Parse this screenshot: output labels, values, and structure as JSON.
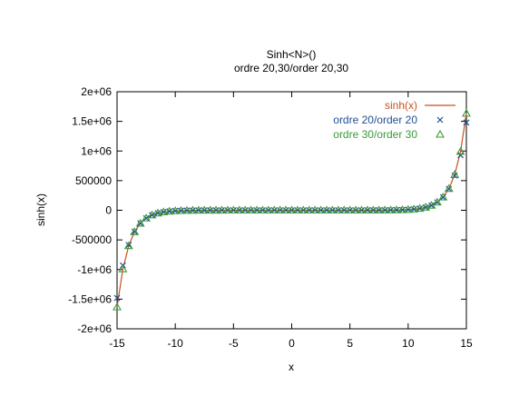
{
  "chart_data": {
    "type": "line",
    "title": "Sinh<N>()",
    "subtitle": "ordre 20,30/order 20,30",
    "xlabel": "x",
    "ylabel": "sinh(x)",
    "xlim": [
      -15,
      15
    ],
    "ylim": [
      -2000000,
      2000000
    ],
    "x_ticks": [
      -15,
      -10,
      -5,
      0,
      5,
      10,
      15
    ],
    "x_tick_labels": [
      "-15",
      "-10",
      "-5",
      "0",
      "5",
      "10",
      "15"
    ],
    "y_ticks": [
      -2000000,
      -1500000,
      -1000000,
      -500000,
      0,
      500000,
      1000000,
      1500000,
      2000000
    ],
    "y_tick_labels": [
      "-2e+06",
      "-1.5e+06",
      "-1e+06",
      "-500000",
      "0",
      "500000",
      "1e+06",
      "1.5e+06",
      "2e+06"
    ],
    "grid": false,
    "legend_position": "top-right",
    "x": [
      -15,
      -14.5,
      -14,
      -13.5,
      -13,
      -12.5,
      -12,
      -11.5,
      -11,
      -10.5,
      -10,
      -9.5,
      -9,
      -8.5,
      -8,
      -7.5,
      -7,
      -6.5,
      -6,
      -5.5,
      -5,
      -4.5,
      -4,
      -3.5,
      -3,
      -2.5,
      -2,
      -1.5,
      -1,
      -0.5,
      0,
      0.5,
      1,
      1.5,
      2,
      2.5,
      3,
      3.5,
      4,
      4.5,
      5,
      5.5,
      6,
      6.5,
      7,
      7.5,
      8,
      8.5,
      9,
      9.5,
      10,
      10.5,
      11,
      11.5,
      12,
      12.5,
      13,
      13.5,
      14,
      14.5,
      15
    ],
    "series": [
      {
        "name": "sinh(x)",
        "style": "line",
        "color": "#c8501e",
        "values": [
          -1634508.7,
          -991360.0,
          -601302.1,
          -364708.2,
          -221206.7,
          -134168.2,
          -81377.4,
          -49358.8,
          -29937.1,
          -18157.8,
          -11013.2,
          -6679.9,
          -4051.5,
          -2457.4,
          -1490.5,
          -904.0,
          -548.3,
          -332.6,
          -201.7,
          -122.3,
          -74.2,
          -45.0,
          -27.3,
          -16.5,
          -10.0,
          -6.1,
          -3.6,
          -2.1,
          -1.2,
          -0.5,
          0,
          0.5,
          1.2,
          2.1,
          3.6,
          6.1,
          10.0,
          16.5,
          27.3,
          45.0,
          74.2,
          122.3,
          201.7,
          332.6,
          548.3,
          904.0,
          1490.5,
          2457.4,
          4051.5,
          6679.9,
          11013.2,
          18157.8,
          29937.1,
          49358.8,
          81377.4,
          134168.2,
          221206.7,
          364708.2,
          601302.1,
          991360.0,
          1634508.7
        ]
      },
      {
        "name": "ordre 20/order 20",
        "style": "points",
        "marker": "x",
        "color": "#1f4e96",
        "values": [
          -1480000,
          -930000,
          -585000,
          -360000,
          -220000,
          -134000,
          -81300,
          -49350,
          -29937,
          -18158,
          -11013,
          -6680,
          -4051,
          -2457,
          -1490,
          -904,
          -548,
          -333,
          -202,
          -122,
          -74,
          -45,
          -27,
          -17,
          -10,
          -6,
          -4,
          -2,
          -1,
          -0.5,
          0,
          0.5,
          1,
          2,
          4,
          6,
          10,
          17,
          27,
          45,
          74,
          122,
          202,
          333,
          548,
          904,
          1490,
          2457,
          4051,
          6680,
          11013,
          18158,
          29937,
          49350,
          81300,
          134000,
          220000,
          360000,
          585000,
          930000,
          1480000
        ]
      },
      {
        "name": "ordre 30/order 30",
        "style": "points",
        "marker": "triangle",
        "color": "#3a9a3a",
        "values": [
          -1634000,
          -991000,
          -601300,
          -364700,
          -221200,
          -134168,
          -81377,
          -49359,
          -29937,
          -18158,
          -11013,
          -6680,
          -4051,
          -2457,
          -1490,
          -904,
          -548,
          -333,
          -202,
          -122,
          -74,
          -45,
          -27,
          -17,
          -10,
          -6,
          -4,
          -2,
          -1,
          -0.5,
          0,
          0.5,
          1,
          2,
          4,
          6,
          10,
          17,
          27,
          45,
          74,
          122,
          202,
          333,
          548,
          904,
          1490,
          2457,
          4051,
          6680,
          11013,
          18158,
          29937,
          49359,
          81377,
          134168,
          221200,
          364700,
          601300,
          991000,
          1634000
        ]
      }
    ]
  }
}
